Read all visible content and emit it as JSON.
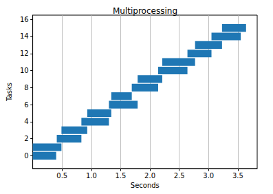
{
  "chart_data": {
    "type": "gantt",
    "title": "Multiprocessing",
    "x_label": "Seconds",
    "y_label": "Tasks",
    "orientation": "horizontal",
    "tasks": [
      0,
      1,
      2,
      3,
      4,
      5,
      6,
      7,
      8,
      9,
      10,
      11,
      12,
      13,
      14,
      15
    ],
    "start": [
      0.0,
      0.0,
      0.41,
      0.49,
      0.83,
      0.93,
      1.3,
      1.34,
      1.69,
      1.79,
      2.14,
      2.21,
      2.64,
      2.77,
      3.05,
      3.23
    ],
    "end": [
      0.4,
      0.49,
      0.83,
      0.93,
      1.3,
      1.34,
      1.79,
      1.69,
      2.14,
      2.21,
      2.64,
      2.77,
      3.05,
      3.23,
      3.55,
      3.64
    ],
    "color": "#1f77b4",
    "xlim": [
      0,
      3.83
    ],
    "xticks": [
      {
        "value": 0.5,
        "label": "0.5"
      },
      {
        "value": 1.0,
        "label": "1.0"
      },
      {
        "value": 1.5,
        "label": "1.5"
      },
      {
        "value": 2.0,
        "label": "2.0"
      },
      {
        "value": 2.5,
        "label": "2.5"
      },
      {
        "value": 3.0,
        "label": "3.0"
      },
      {
        "value": 3.5,
        "label": "3.5"
      }
    ],
    "ylim": [
      -1.5,
      16.5
    ],
    "yticks": [
      0,
      2,
      4,
      6,
      8,
      10,
      12,
      14,
      16
    ],
    "grid": "x"
  }
}
